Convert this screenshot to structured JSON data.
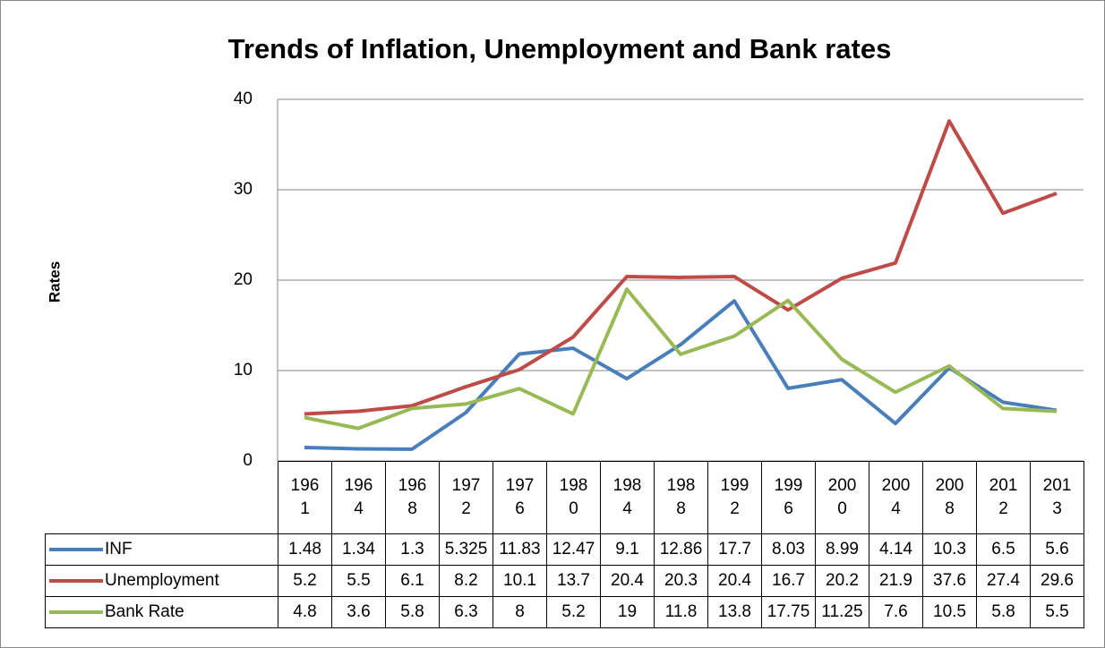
{
  "chart_data": {
    "type": "line",
    "title": "Trends of Inflation, Unemployment and Bank rates",
    "y_label": "Rates",
    "categories": [
      "1961",
      "1964",
      "1968",
      "1972",
      "1976",
      "1980",
      "1984",
      "1988",
      "1992",
      "1996",
      "2000",
      "2004",
      "2008",
      "2012",
      "2013"
    ],
    "series": [
      {
        "name": "INF",
        "color": "#4a7ebb",
        "values": [
          1.48,
          1.34,
          1.3,
          5.325,
          11.83,
          12.47,
          9.1,
          12.86,
          17.7,
          8.03,
          8.99,
          4.14,
          10.3,
          6.5,
          5.6
        ]
      },
      {
        "name": "Unemployment",
        "color": "#be4b48",
        "values": [
          5.2,
          5.5,
          6.1,
          8.2,
          10.1,
          13.7,
          20.4,
          20.3,
          20.4,
          16.7,
          20.2,
          21.9,
          37.6,
          27.4,
          29.6
        ]
      },
      {
        "name": "Bank Rate",
        "color": "#98b954",
        "values": [
          4.8,
          3.6,
          5.8,
          6.3,
          8,
          5.2,
          19,
          11.8,
          13.8,
          17.75,
          11.25,
          7.6,
          10.5,
          5.8,
          5.5
        ]
      }
    ],
    "ylim": [
      0,
      40
    ],
    "yticks": [
      0,
      10,
      20,
      30,
      40
    ],
    "grid": true
  }
}
